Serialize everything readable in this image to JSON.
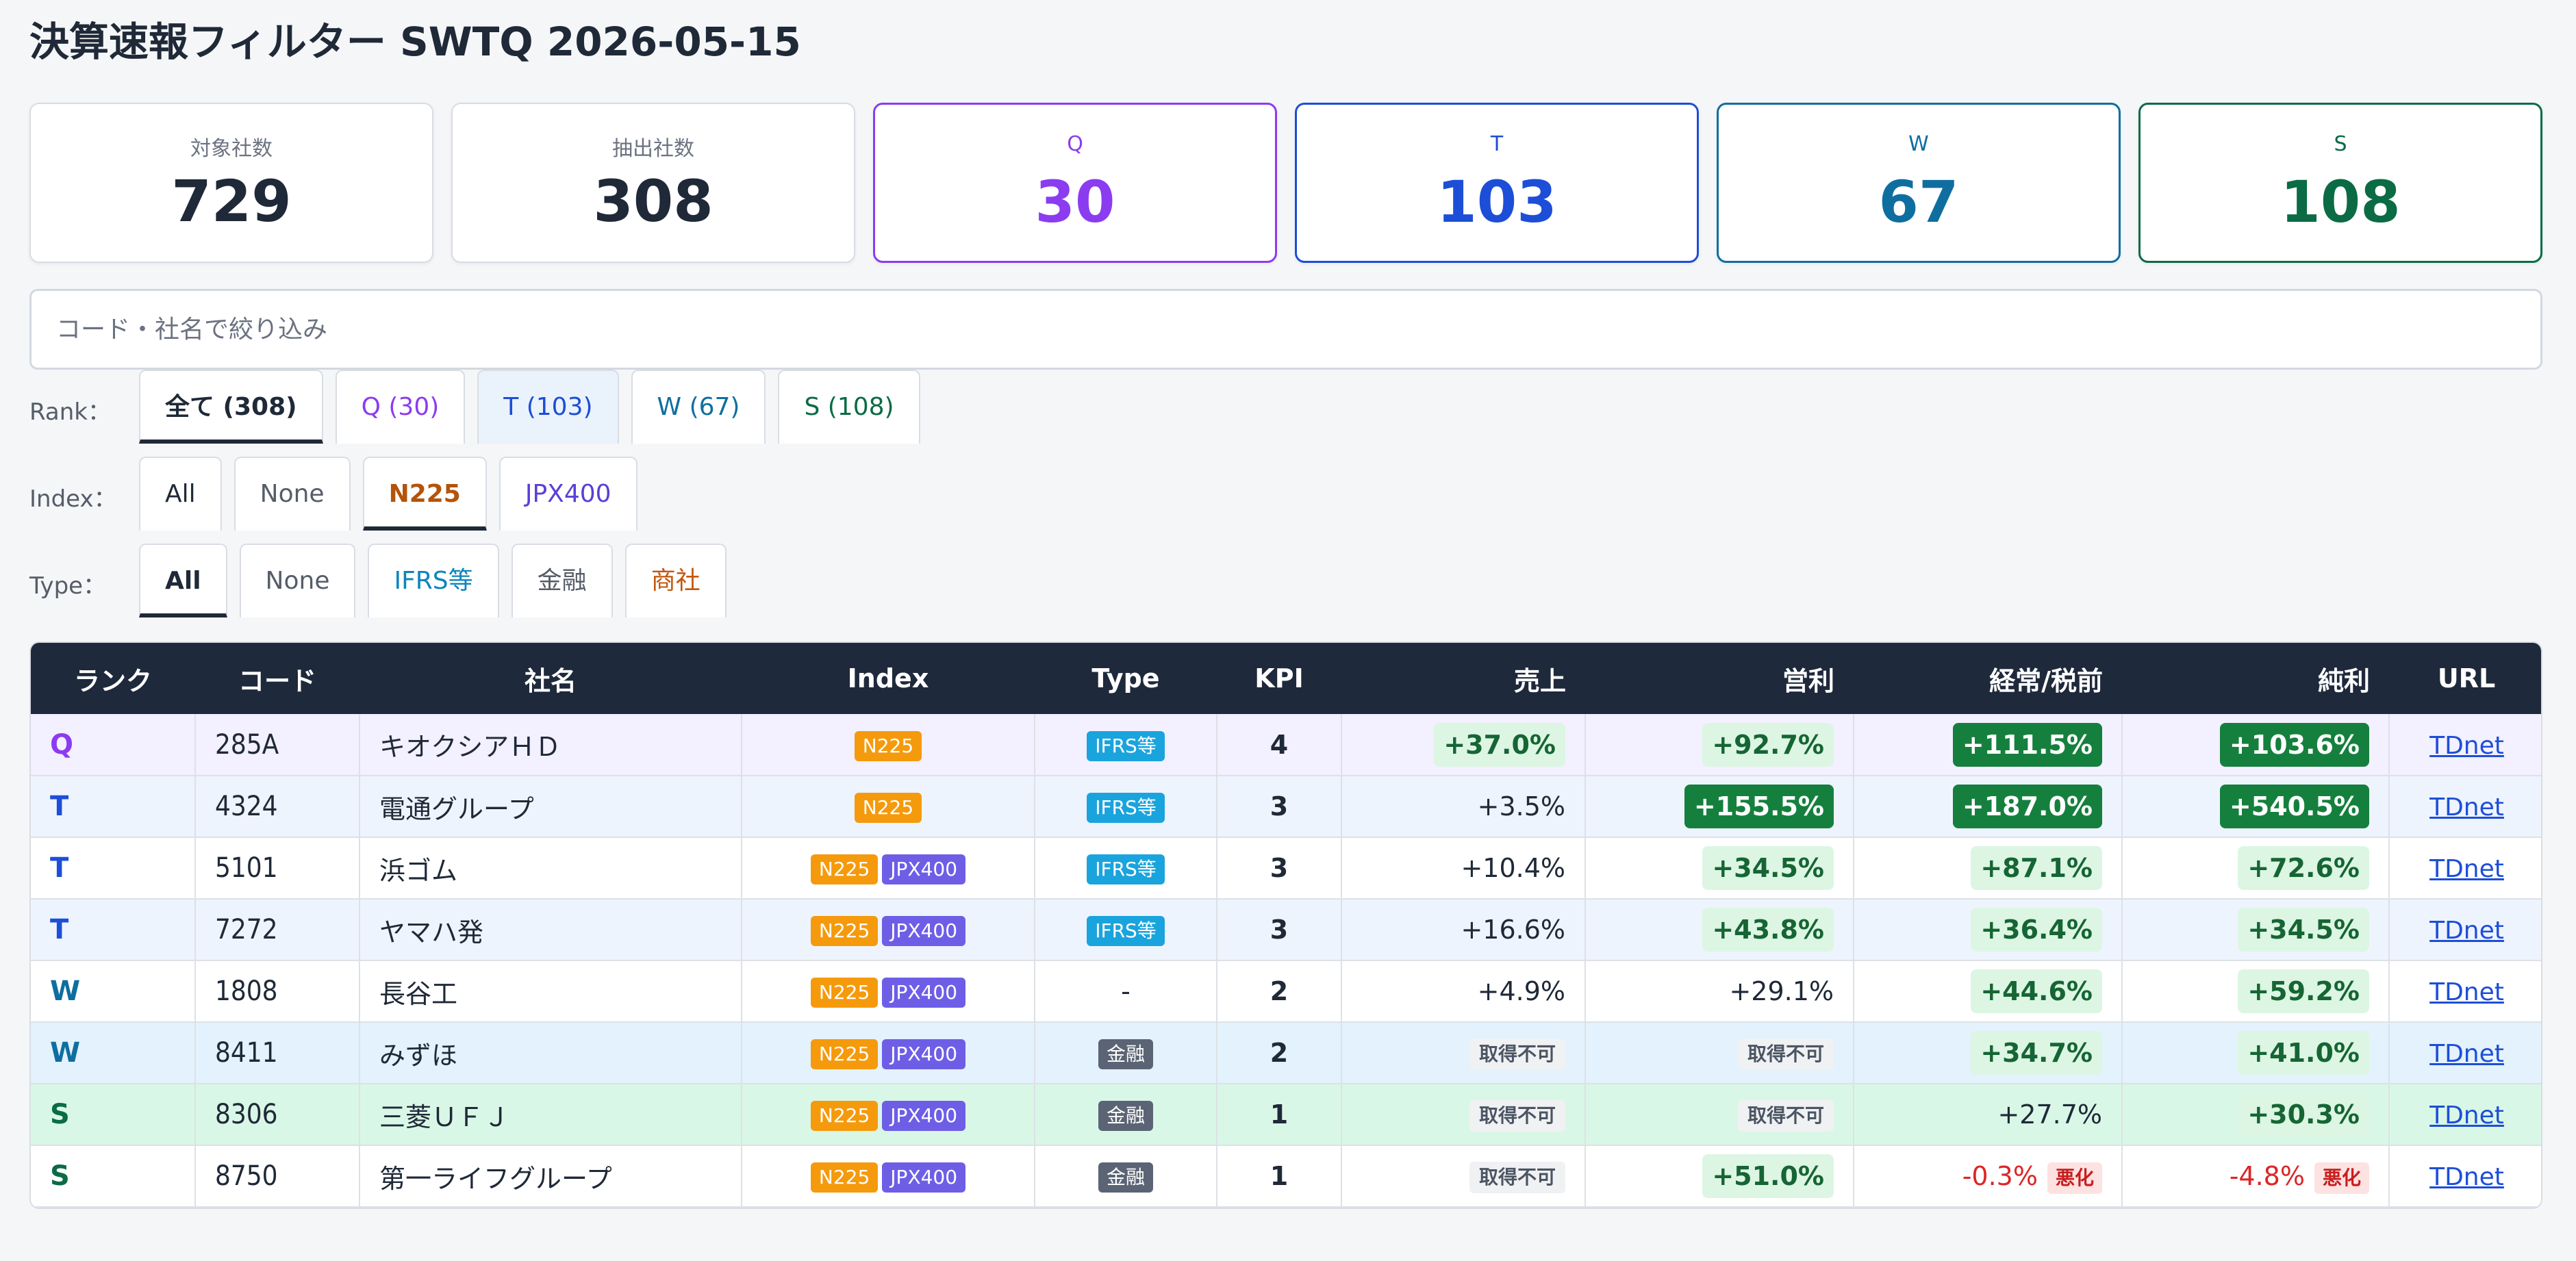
{
  "title": "決算速報フィルター SWTQ 2026-05-15",
  "cards": [
    {
      "label": "対象社数",
      "value": "729"
    },
    {
      "label": "抽出社数",
      "value": "308"
    },
    {
      "label": "Q",
      "value": "30"
    },
    {
      "label": "T",
      "value": "103"
    },
    {
      "label": "W",
      "value": "67"
    },
    {
      "label": "S",
      "value": "108"
    }
  ],
  "search": {
    "placeholder": "コード・社名で絞り込み"
  },
  "filters": {
    "rank": {
      "label": "Rank：",
      "options": [
        "全て (308)",
        "Q (30)",
        "T (103)",
        "W (67)",
        "S (108)"
      ],
      "selected": "全て (308)"
    },
    "index": {
      "label": "Index：",
      "options": [
        "All",
        "None",
        "N225",
        "JPX400"
      ],
      "selected": "N225"
    },
    "type": {
      "label": "Type：",
      "options": [
        "All",
        "None",
        "IFRS等",
        "金融",
        "商社"
      ],
      "selected": "All"
    }
  },
  "colors": {
    "Q": "#8b3cf0",
    "T": "#1d4ed8",
    "W": "#0f6ea0",
    "S": "#0b6b45",
    "N225": "#b45309",
    "JPX400": "#5b3fd6",
    "IFRS": "#0e84bd",
    "trading": "#c2570c"
  },
  "table": {
    "headers": [
      "ランク",
      "コード",
      "社名",
      "Index",
      "Type",
      "KPI",
      "売上",
      "営利",
      "経常/税前",
      "純利",
      "URL"
    ],
    "rows": [
      {
        "rank": "Q",
        "code": "285A",
        "name": "キオクシアＨＤ",
        "index": [
          "N225"
        ],
        "type": "IFRS等",
        "kpi": "4",
        "sales": "+37.0%",
        "op": "+92.7%",
        "ord": "+111.5%",
        "net": "+103.6%",
        "url": "TDnet"
      },
      {
        "rank": "T",
        "code": "4324",
        "name": "電通グループ",
        "index": [
          "N225"
        ],
        "type": "IFRS等",
        "kpi": "3",
        "sales": "+3.5%",
        "op": "+155.5%",
        "ord": "+187.0%",
        "net": "+540.5%",
        "url": "TDnet"
      },
      {
        "rank": "T",
        "code": "5101",
        "name": "浜ゴム",
        "index": [
          "N225",
          "JPX400"
        ],
        "type": "IFRS等",
        "kpi": "3",
        "sales": "+10.4%",
        "op": "+34.5%",
        "ord": "+87.1%",
        "net": "+72.6%",
        "url": "TDnet"
      },
      {
        "rank": "T",
        "code": "7272",
        "name": "ヤマハ発",
        "index": [
          "N225",
          "JPX400"
        ],
        "type": "IFRS等",
        "kpi": "3",
        "sales": "+16.6%",
        "op": "+43.8%",
        "ord": "+36.4%",
        "net": "+34.5%",
        "url": "TDnet"
      },
      {
        "rank": "W",
        "code": "1808",
        "name": "長谷工",
        "index": [
          "N225",
          "JPX400"
        ],
        "type": "-",
        "kpi": "2",
        "sales": "+4.9%",
        "op": "+29.1%",
        "ord": "+44.6%",
        "net": "+59.2%",
        "url": "TDnet"
      },
      {
        "rank": "W",
        "code": "8411",
        "name": "みずほ",
        "index": [
          "N225",
          "JPX400"
        ],
        "type": "金融",
        "kpi": "2",
        "sales": "取得不可",
        "op": "取得不可",
        "ord": "+34.7%",
        "net": "+41.0%",
        "url": "TDnet"
      },
      {
        "rank": "S",
        "code": "8306",
        "name": "三菱ＵＦＪ",
        "index": [
          "N225",
          "JPX400"
        ],
        "type": "金融",
        "kpi": "1",
        "sales": "取得不可",
        "op": "取得不可",
        "ord": "+27.7%",
        "net": "+30.3%",
        "url": "TDnet"
      },
      {
        "rank": "S",
        "code": "8750",
        "name": "第一ライフグループ",
        "index": [
          "N225",
          "JPX400"
        ],
        "type": "金融",
        "kpi": "1",
        "sales": "取得不可",
        "op": "+51.0%",
        "ord": "-0.3%",
        "ord_flag": "悪化",
        "net": "-4.8%",
        "net_flag": "悪化",
        "url": "TDnet"
      }
    ]
  }
}
